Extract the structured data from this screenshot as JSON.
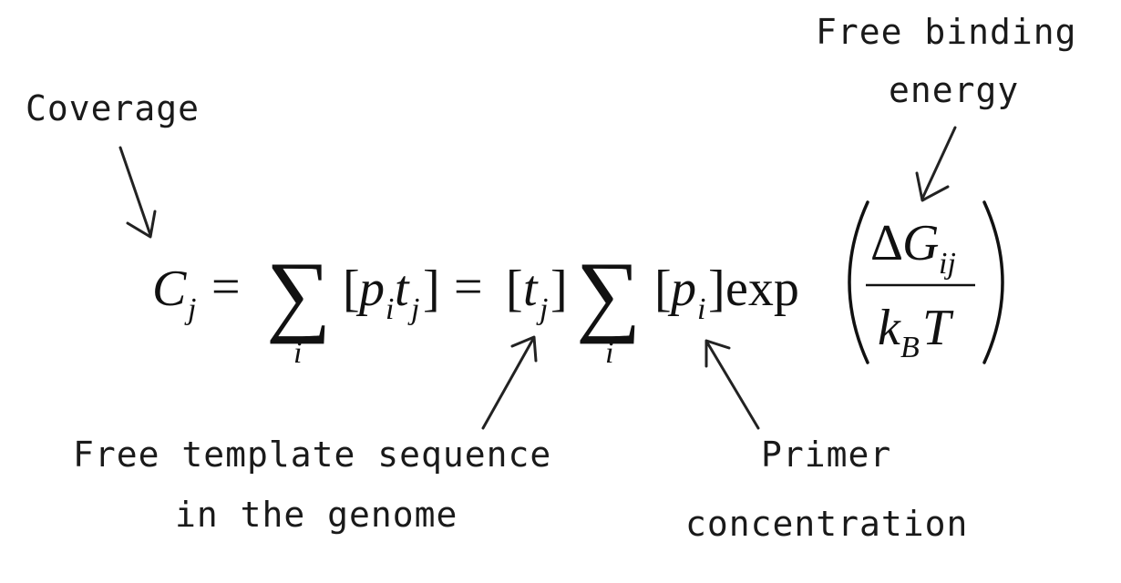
{
  "annotations": {
    "coverage": "Coverage",
    "free_binding_energy_line1": "Free binding",
    "free_binding_energy_line2": "energy",
    "free_template_line1": "Free template sequence",
    "free_template_line2": "in the genome",
    "primer_line1": "Primer",
    "primer_line2": "concentration"
  },
  "equation": {
    "C": "C",
    "j_sub": "j",
    "equals": "=",
    "sum_symbol": "∑",
    "sum_index": "i",
    "lbracket": "[",
    "rbracket": "]",
    "p": "p",
    "i_sub": "i",
    "t": "t",
    "exp": "exp",
    "delta": "Δ",
    "G": "G",
    "ij_sub": "ij",
    "k": "k",
    "B_sub": "B",
    "T": "T"
  },
  "colors": {
    "ink": "#111111",
    "background": "#ffffff"
  }
}
